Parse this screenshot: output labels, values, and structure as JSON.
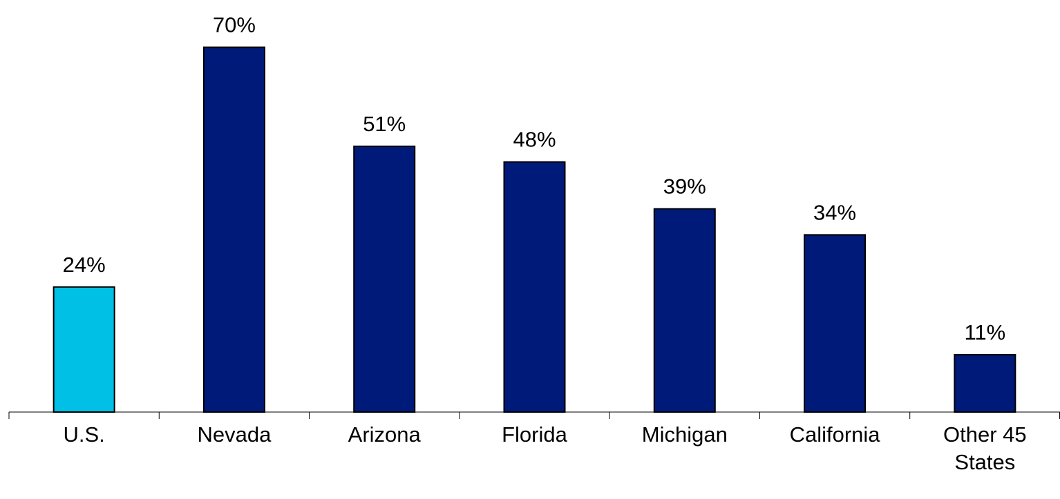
{
  "chart_data": {
    "type": "bar",
    "categories": [
      "U.S.",
      "Nevada",
      "Arizona",
      "Florida",
      "Michigan",
      "California",
      "Other 45 States"
    ],
    "values": [
      24,
      70,
      51,
      48,
      39,
      34,
      11
    ],
    "value_labels": [
      "24%",
      "70%",
      "51%",
      "48%",
      "39%",
      "34%",
      "11%"
    ],
    "colors": [
      "#00c0e6",
      "#001a7a",
      "#001a7a",
      "#001a7a",
      "#001a7a",
      "#001a7a",
      "#001a7a"
    ]
  }
}
